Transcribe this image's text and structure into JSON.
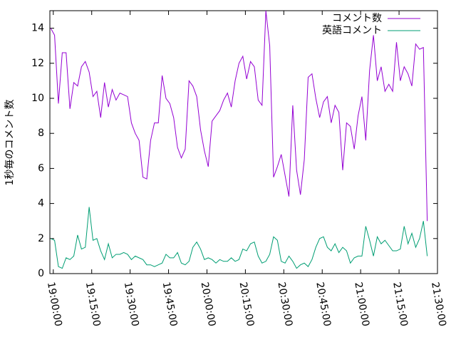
{
  "chart_data": {
    "type": "line",
    "y_label": "1秒毎のコメント数",
    "x": [
      "18:59:00",
      "19:00:30",
      "19:02:00",
      "19:03:30",
      "19:05:00",
      "19:06:30",
      "19:08:00",
      "19:09:30",
      "19:11:00",
      "19:12:30",
      "19:14:00",
      "19:15:30",
      "19:17:00",
      "19:18:30",
      "19:20:00",
      "19:21:30",
      "19:23:00",
      "19:24:30",
      "19:26:00",
      "19:27:30",
      "19:29:00",
      "19:30:30",
      "19:32:00",
      "19:33:30",
      "19:35:00",
      "19:36:30",
      "19:38:00",
      "19:39:30",
      "19:41:00",
      "19:42:30",
      "19:44:00",
      "19:45:30",
      "19:47:00",
      "19:48:30",
      "19:50:00",
      "19:51:30",
      "19:53:00",
      "19:54:30",
      "19:56:00",
      "19:57:30",
      "19:59:00",
      "20:00:30",
      "20:02:00",
      "20:03:30",
      "20:05:00",
      "20:06:30",
      "20:08:00",
      "20:09:30",
      "20:11:00",
      "20:12:30",
      "20:14:00",
      "20:15:30",
      "20:17:00",
      "20:18:30",
      "20:20:00",
      "20:21:30",
      "20:23:00",
      "20:24:30",
      "20:26:00",
      "20:27:30",
      "20:29:00",
      "20:30:30",
      "20:32:00",
      "20:33:30",
      "20:35:00",
      "20:36:30",
      "20:38:00",
      "20:39:30",
      "20:41:00",
      "20:42:30",
      "20:44:00",
      "20:45:30",
      "20:47:00",
      "20:48:30",
      "20:50:00",
      "20:51:30",
      "20:53:00",
      "20:54:30",
      "20:56:00",
      "20:57:30",
      "20:59:00",
      "21:00:30",
      "21:02:00",
      "21:03:30",
      "21:05:00",
      "21:06:30",
      "21:08:00",
      "21:09:30",
      "21:11:00",
      "21:12:30",
      "21:14:00",
      "21:15:30",
      "21:17:00",
      "21:18:30",
      "21:20:00",
      "21:21:30",
      "21:23:00",
      "21:24:30",
      "21:26:00"
    ],
    "series": [
      {
        "name": "コメント数",
        "color": "#9400d3",
        "values": [
          14,
          13.6,
          9.7,
          12.6,
          12.6,
          9.4,
          10.9,
          10.7,
          11.8,
          12.1,
          11.5,
          10.1,
          10.4,
          8.9,
          10.9,
          9.5,
          10.5,
          9.9,
          10.3,
          10.2,
          10.1,
          8.6,
          8.0,
          7.6,
          5.5,
          5.4,
          7.6,
          8.6,
          8.6,
          11.3,
          10.0,
          9.7,
          8.9,
          7.2,
          6.6,
          7.1,
          11.0,
          10.7,
          10.1,
          8.2,
          7.0,
          6.1,
          8.7,
          9.0,
          9.3,
          9.9,
          10.3,
          9.5,
          11.0,
          12.0,
          12.4,
          11.1,
          12.1,
          11.8,
          9.9,
          9.6,
          15.0,
          13.0,
          5.5,
          6.1,
          6.8,
          5.6,
          4.4,
          9.6,
          5.9,
          4.5,
          6.5,
          11.2,
          11.4,
          10.0,
          8.9,
          9.8,
          10.1,
          8.6,
          9.6,
          9.2,
          5.9,
          8.6,
          8.4,
          7.1,
          9.0,
          10.1,
          7.6,
          11.6,
          13.6,
          11.0,
          11.8,
          10.4,
          10.8,
          10.4,
          13.2,
          11.0,
          11.8,
          11.4,
          10.7,
          13.1,
          12.8,
          12.9,
          3.0
        ]
      },
      {
        "name": "英語コメント",
        "color": "#009e73",
        "values": [
          2.0,
          1.9,
          0.4,
          0.3,
          0.9,
          0.8,
          1.0,
          2.2,
          1.4,
          1.5,
          3.8,
          1.9,
          2.0,
          1.3,
          0.8,
          1.7,
          0.9,
          1.1,
          1.1,
          1.2,
          1.1,
          0.8,
          1.0,
          0.9,
          0.8,
          0.5,
          0.5,
          0.4,
          0.5,
          0.6,
          1.1,
          0.9,
          0.9,
          1.2,
          0.6,
          0.5,
          0.7,
          1.5,
          1.8,
          1.4,
          0.8,
          0.9,
          0.8,
          0.6,
          0.8,
          0.7,
          0.7,
          0.9,
          0.7,
          0.8,
          1.4,
          1.3,
          1.7,
          1.8,
          1.0,
          0.6,
          0.7,
          1.1,
          2.1,
          1.9,
          0.7,
          0.6,
          1.0,
          0.7,
          0.3,
          0.5,
          0.6,
          0.4,
          0.8,
          1.5,
          2.0,
          2.1,
          1.5,
          1.3,
          1.7,
          1.2,
          1.5,
          1.3,
          0.6,
          0.9,
          1.0,
          1.0,
          2.7,
          1.9,
          1.0,
          2.1,
          1.7,
          1.9,
          1.6,
          1.3,
          1.3,
          1.4,
          2.7,
          1.7,
          2.3,
          1.5,
          2.0,
          3.0,
          1.0
        ]
      }
    ],
    "xlim": [
      "18:58:40",
      "21:30:00"
    ],
    "xticks": [
      "19:00:00",
      "19:15:00",
      "19:30:00",
      "19:45:00",
      "20:00:00",
      "20:15:00",
      "20:30:00",
      "20:45:00",
      "21:00:00",
      "21:15:00",
      "21:30:00"
    ],
    "ylim": [
      0,
      15
    ],
    "yticks": [
      0,
      2,
      4,
      6,
      8,
      10,
      12,
      14
    ],
    "legend": "top-right"
  }
}
